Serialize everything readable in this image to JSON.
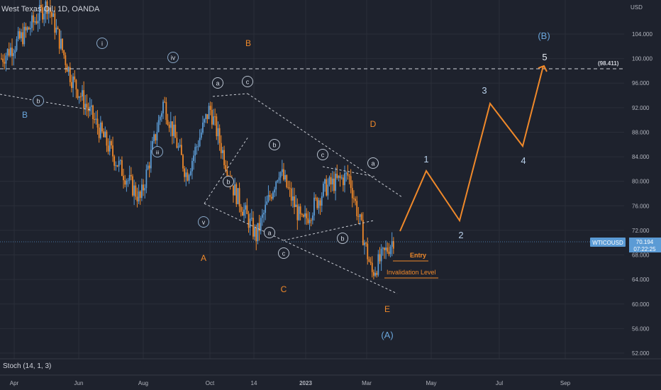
{
  "symbol": {
    "title": "West Texas Oil, 1D, OANDA",
    "currency": "USD",
    "ticker": "WTICOUSD",
    "last_price": "70.194",
    "countdown": "07:22:25"
  },
  "indicator": {
    "label": "Stoch (14, 1, 3)"
  },
  "colors": {
    "background": "#1e222d",
    "up_candle": "#5b9bd5",
    "down_candle": "#f0892a",
    "wave_orange": "#f0892a",
    "wave_blue": "#6aa6dc",
    "price_tag": "#5b9bd5"
  },
  "chart_data": {
    "type": "candlestick",
    "price_axis": {
      "ticks": [
        "104.000",
        "100.000",
        "96.000",
        "92.000",
        "88.000",
        "84.000",
        "80.000",
        "76.000",
        "72.000",
        "68.000",
        "64.000",
        "60.000",
        "56.000",
        "52.000"
      ],
      "ylim": [
        51,
        109
      ]
    },
    "time_axis": {
      "labels": [
        "Apr",
        "Jun",
        "Aug",
        "Oct",
        "14",
        "2023",
        "Mar",
        "May",
        "Jul",
        "Sep"
      ]
    },
    "price_path": [
      [
        "Apr 2022",
        100
      ],
      [
        "May 2022",
        104
      ],
      [
        "Jun 2022",
        109
      ],
      [
        "Jul 2022",
        97
      ],
      [
        "Aug 2022",
        90
      ],
      [
        "Sep 2022",
        83
      ],
      [
        "Sep 2022",
        77
      ],
      [
        "Oct 2022",
        93
      ],
      [
        "Oct 2022",
        81
      ],
      [
        "Nov 2022",
        92
      ],
      [
        "Nov 2022",
        79
      ],
      [
        "Dec 2022",
        71
      ],
      [
        "Jan 2023",
        82
      ],
      [
        "Jan 2023",
        73
      ],
      [
        "Feb 2023",
        79
      ],
      [
        "Mar 2023",
        81
      ],
      [
        "Mar 2023",
        65
      ],
      [
        "Mar 2023",
        71
      ]
    ],
    "horizontal_levels": [
      {
        "label": "(98.411)",
        "price": 98.411,
        "style": "dashed"
      },
      {
        "label": "WTICOUSD",
        "price": 70.194,
        "style": "dotted"
      }
    ],
    "trade_markers": [
      {
        "label": "Entry",
        "price": 67.5
      },
      {
        "label": "Invalidation Level",
        "price": 64.6
      }
    ],
    "projection_path": {
      "labels": [
        "1",
        "2",
        "3",
        "4",
        "5"
      ],
      "points": [
        [
          "Mar 2023",
          72.5
        ],
        [
          "Apr 2023",
          81.5
        ],
        [
          "May 2023",
          73.7
        ],
        [
          "Jun 2023",
          93
        ],
        [
          "Jul 2023",
          85.5
        ],
        [
          "Aug 2023",
          98.4
        ]
      ]
    },
    "wave_labels_orange": [
      "B",
      "D",
      "A",
      "C",
      "E"
    ],
    "wave_labels_blue_plain": [
      "B",
      "(B)",
      "5",
      "1",
      "2",
      "3",
      "4",
      "(A)"
    ],
    "wave_labels_circled": [
      "b",
      "i",
      "iv",
      "iii",
      "v",
      "a",
      "c",
      "b",
      "b",
      "a",
      "c",
      "a",
      "c",
      "b"
    ]
  }
}
